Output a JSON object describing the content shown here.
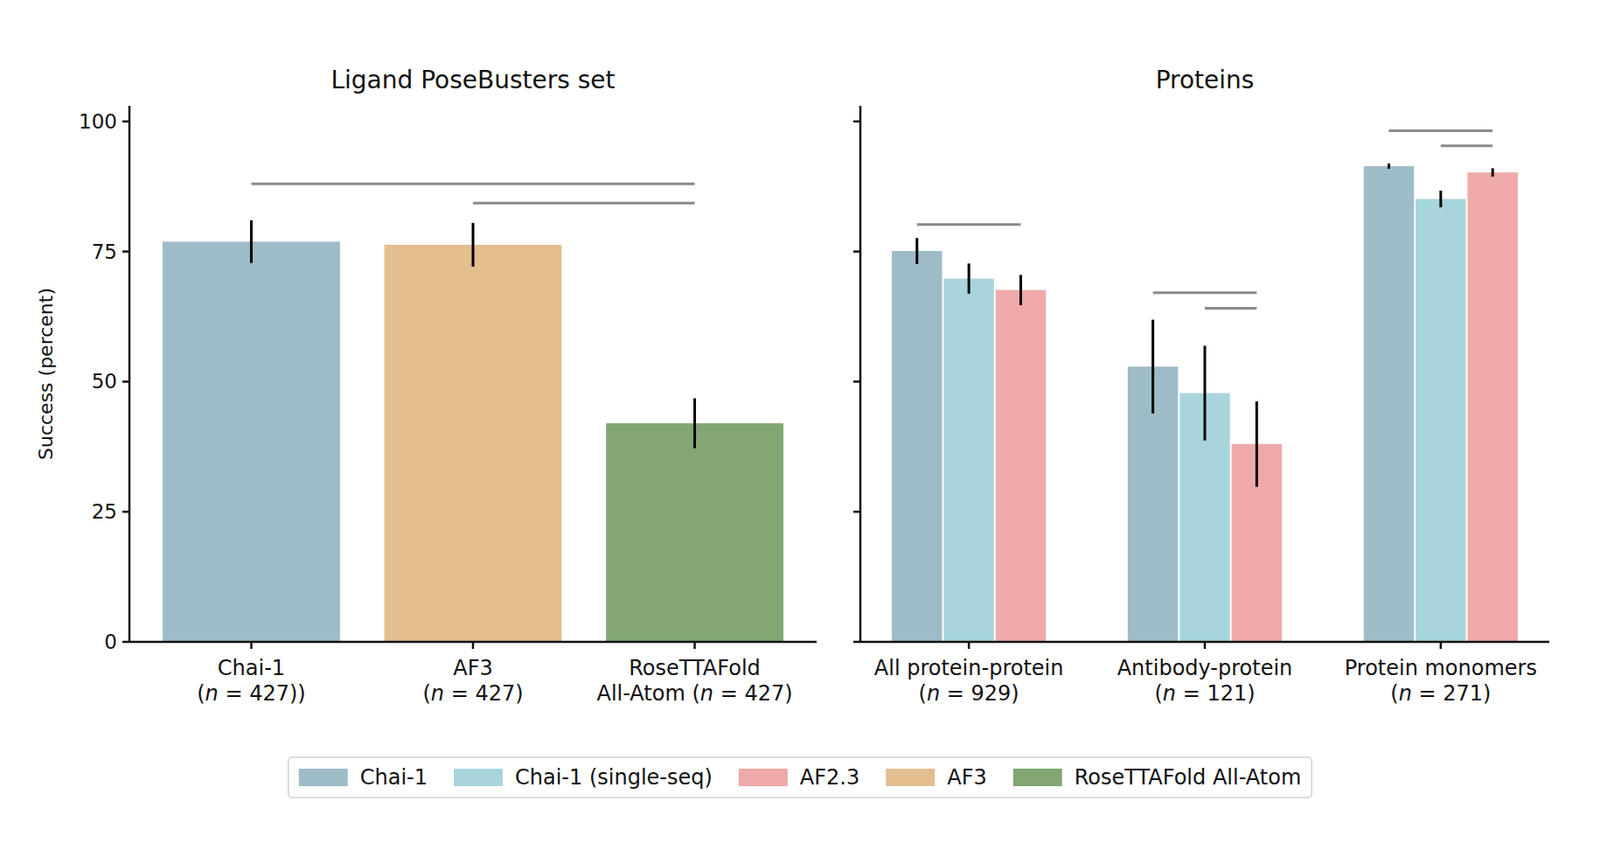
{
  "chart_data": [
    {
      "type": "bar",
      "title": "Ligand PoseBusters set",
      "y_label": "Success (percent)",
      "categories": [
        "Chai-1\n(n = 427))",
        "AF3\n(n = 427)",
        "RoseTTAFold\nAll-Atom (n = 427)"
      ],
      "series": [
        {
          "name": "Chai-1",
          "color": "#9ebcc8",
          "values": [
            76.9,
            null,
            null
          ],
          "errors": [
            4.1,
            null,
            null
          ]
        },
        {
          "name": "AF3",
          "color": "#e3be8f",
          "values": [
            null,
            76.3,
            null
          ],
          "errors": [
            null,
            4.2,
            null
          ]
        },
        {
          "name": "RoseTTAFold All-Atom",
          "color": "#82a773",
          "values": [
            null,
            null,
            42
          ],
          "errors": [
            null,
            null,
            4.8
          ]
        }
      ],
      "significance": [
        {
          "from": [
            0,
            0
          ],
          "to": [
            2,
            2
          ],
          "y": 88
        },
        {
          "from": [
            1,
            1
          ],
          "to": [
            2,
            2
          ],
          "y": 84.3
        }
      ],
      "ylim": [
        0,
        103
      ],
      "yticks": [
        0,
        25,
        50,
        75,
        100
      ],
      "grid": false,
      "legend": "bottom",
      "tick_labels": true
    },
    {
      "type": "bar",
      "title": "Proteins",
      "categories": [
        "All protein-protein\n(n = 929)",
        "Antibody-protein\n(n = 121)",
        "Protein monomers\n(n = 271)"
      ],
      "series": [
        {
          "name": "Chai-1",
          "color": "#9ebcc8",
          "values": [
            75.1,
            52.9,
            91.4
          ],
          "errors": [
            2.5,
            9,
            0.5
          ]
        },
        {
          "name": "Chai-1 (single-seq)",
          "color": "#a8d5dc",
          "values": [
            69.8,
            47.8,
            85.1
          ],
          "errors": [
            2.9,
            9.1,
            1.6
          ]
        },
        {
          "name": "AF2.3",
          "color": "#efa9a8",
          "values": [
            67.6,
            38,
            90.2
          ],
          "errors": [
            2.9,
            8.2,
            0.8
          ]
        }
      ],
      "significance": [
        {
          "from": [
            0,
            0
          ],
          "to": [
            0,
            2
          ],
          "y": 80.2
        },
        {
          "from": [
            1,
            0
          ],
          "to": [
            1,
            2
          ],
          "y": 67.1
        },
        {
          "from": [
            1,
            1
          ],
          "to": [
            1,
            2
          ],
          "y": 64.1
        },
        {
          "from": [
            2,
            0
          ],
          "to": [
            2,
            2
          ],
          "y": 98.2
        },
        {
          "from": [
            2,
            1
          ],
          "to": [
            2,
            2
          ],
          "y": 95.3
        }
      ],
      "ylim": [
        0,
        103
      ],
      "yticks": [
        0,
        25,
        50,
        75,
        100
      ],
      "grid": false,
      "legend": "bottom",
      "tick_labels": "x"
    }
  ]
}
